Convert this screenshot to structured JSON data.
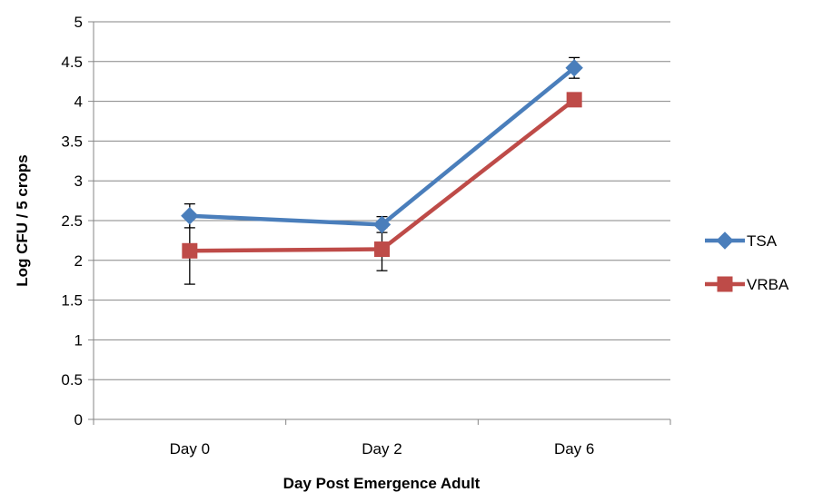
{
  "chart_data": {
    "type": "line",
    "categories": [
      "Day 0",
      "Day 2",
      "Day 6"
    ],
    "series": [
      {
        "name": "TSA",
        "values": [
          2.56,
          2.45,
          4.42
        ],
        "error": [
          0.15,
          0.1,
          0.13
        ],
        "color": "#4a7ebb",
        "marker": "diamond"
      },
      {
        "name": "VRBA",
        "values": [
          2.12,
          2.14,
          4.02
        ],
        "error": [
          0.42,
          0.27,
          0.0
        ],
        "color": "#be4b48",
        "marker": "square"
      }
    ],
    "xlabel": "Day Post Emergence Adult",
    "ylabel": "Log CFU / 5 crops",
    "ylim": [
      0,
      5
    ],
    "yticks": [
      "0",
      "0.5",
      "1",
      "1.5",
      "2",
      "2.5",
      "3",
      "3.5",
      "4",
      "4.5",
      "5"
    ],
    "grid": "horizontal",
    "legend_position": "right",
    "gridline_color": "#868686",
    "axis_color": "#868686"
  }
}
